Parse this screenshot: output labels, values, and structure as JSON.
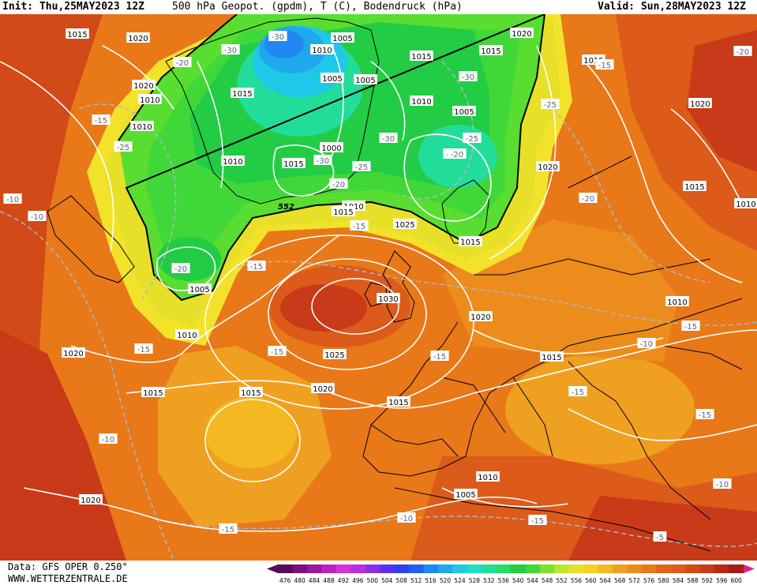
{
  "header": {
    "init": "Init: Thu,25MAY2023 12Z",
    "title": "500 hPa Geopot. (gpdm), T (C), Bodendruck (hPa)",
    "valid": "Valid: Sun,28MAY2023 12Z"
  },
  "footer": {
    "data_source": "Data: GFS OPER 0.250°",
    "website": "WWW.WETTERZENTRALE.DE"
  },
  "colors": {
    "low_green": "#22cc44",
    "mid_green": "#58dd30",
    "cyan": "#22dd99",
    "blue": "#2288ee",
    "yellow": "#f2e22a",
    "orange": "#f0a020",
    "dark_orange": "#e87818",
    "red_orange": "#dc5a1a",
    "red": "#c83a18",
    "isobar": "#ffffff",
    "isotherm": "#aab8c8",
    "coastline": "#000000"
  },
  "map": {
    "contour_552_label": "552",
    "pressure_labels": [
      {
        "text": "1015"
      },
      {
        "text": "1020"
      },
      {
        "text": "1005"
      },
      {
        "text": "1010"
      },
      {
        "text": "1020"
      },
      {
        "text": "1015"
      },
      {
        "text": "1015"
      },
      {
        "text": "1020"
      },
      {
        "text": "1010"
      },
      {
        "text": "1015"
      },
      {
        "text": "1005"
      },
      {
        "text": "1005"
      },
      {
        "text": "1010"
      },
      {
        "text": "1015"
      },
      {
        "text": "1010"
      },
      {
        "text": "1010"
      },
      {
        "text": "1005"
      },
      {
        "text": "1000"
      },
      {
        "text": "1015"
      },
      {
        "text": "1020"
      },
      {
        "text": "1020"
      },
      {
        "text": "1015"
      },
      {
        "text": "1010"
      },
      {
        "text": "1015"
      },
      {
        "text": "1025"
      },
      {
        "text": "1015"
      },
      {
        "text": "1005"
      },
      {
        "text": "1030"
      },
      {
        "text": "1020"
      },
      {
        "text": "1010"
      },
      {
        "text": "1020"
      },
      {
        "text": "1025"
      },
      {
        "text": "1015"
      },
      {
        "text": "1015"
      },
      {
        "text": "1020"
      },
      {
        "text": "1015"
      },
      {
        "text": "1010"
      },
      {
        "text": "1015"
      },
      {
        "text": "1010"
      },
      {
        "text": "1005"
      },
      {
        "text": "1020"
      },
      {
        "text": "1010"
      }
    ],
    "temperature_labels": [
      {
        "text": "-30"
      },
      {
        "text": "-30"
      },
      {
        "text": "-20"
      },
      {
        "text": "-15"
      },
      {
        "text": "-25"
      },
      {
        "text": "-10"
      },
      {
        "text": "-10"
      },
      {
        "text": "-30"
      },
      {
        "text": "-30"
      },
      {
        "text": "-30"
      },
      {
        "text": "-25"
      },
      {
        "text": "-30"
      },
      {
        "text": "-25"
      },
      {
        "text": "-20"
      },
      {
        "text": "-15"
      },
      {
        "text": "-15"
      },
      {
        "text": "-20"
      },
      {
        "text": "-15"
      },
      {
        "text": "-15"
      },
      {
        "text": "-15"
      },
      {
        "text": "-10"
      },
      {
        "text": "-15"
      },
      {
        "text": "-25"
      },
      {
        "text": "-20"
      },
      {
        "text": "-15"
      },
      {
        "text": "-20"
      },
      {
        "text": "-15"
      },
      {
        "text": "-15"
      },
      {
        "text": "-15"
      },
      {
        "text": "-10"
      },
      {
        "text": "-15"
      },
      {
        "text": "-10"
      },
      {
        "text": "-5"
      },
      {
        "text": "-10"
      },
      {
        "text": "-20"
      }
    ]
  },
  "legend": {
    "values": [
      "476",
      "480",
      "484",
      "488",
      "492",
      "496",
      "500",
      "504",
      "508",
      "512",
      "516",
      "520",
      "524",
      "528",
      "532",
      "536",
      "540",
      "544",
      "548",
      "552",
      "556",
      "560",
      "564",
      "568",
      "572",
      "576",
      "580",
      "584",
      "588",
      "592",
      "596",
      "600"
    ],
    "colors": [
      "#5a0a5a",
      "#7a107a",
      "#9a189a",
      "#bb20bb",
      "#d830d8",
      "#b830e0",
      "#8a30e8",
      "#5a30ee",
      "#3040f0",
      "#2060f0",
      "#2088ee",
      "#20a8ee",
      "#20c8e8",
      "#22dcc8",
      "#22dd99",
      "#22dd66",
      "#22cc44",
      "#40d838",
      "#80e030",
      "#b8e828",
      "#e8e028",
      "#f6d020",
      "#f4b820",
      "#f0a020",
      "#ec8c1c",
      "#e87818",
      "#e26418",
      "#dc5a1a",
      "#d24a18",
      "#c83a18",
      "#b82a16",
      "#a01e14"
    ]
  }
}
